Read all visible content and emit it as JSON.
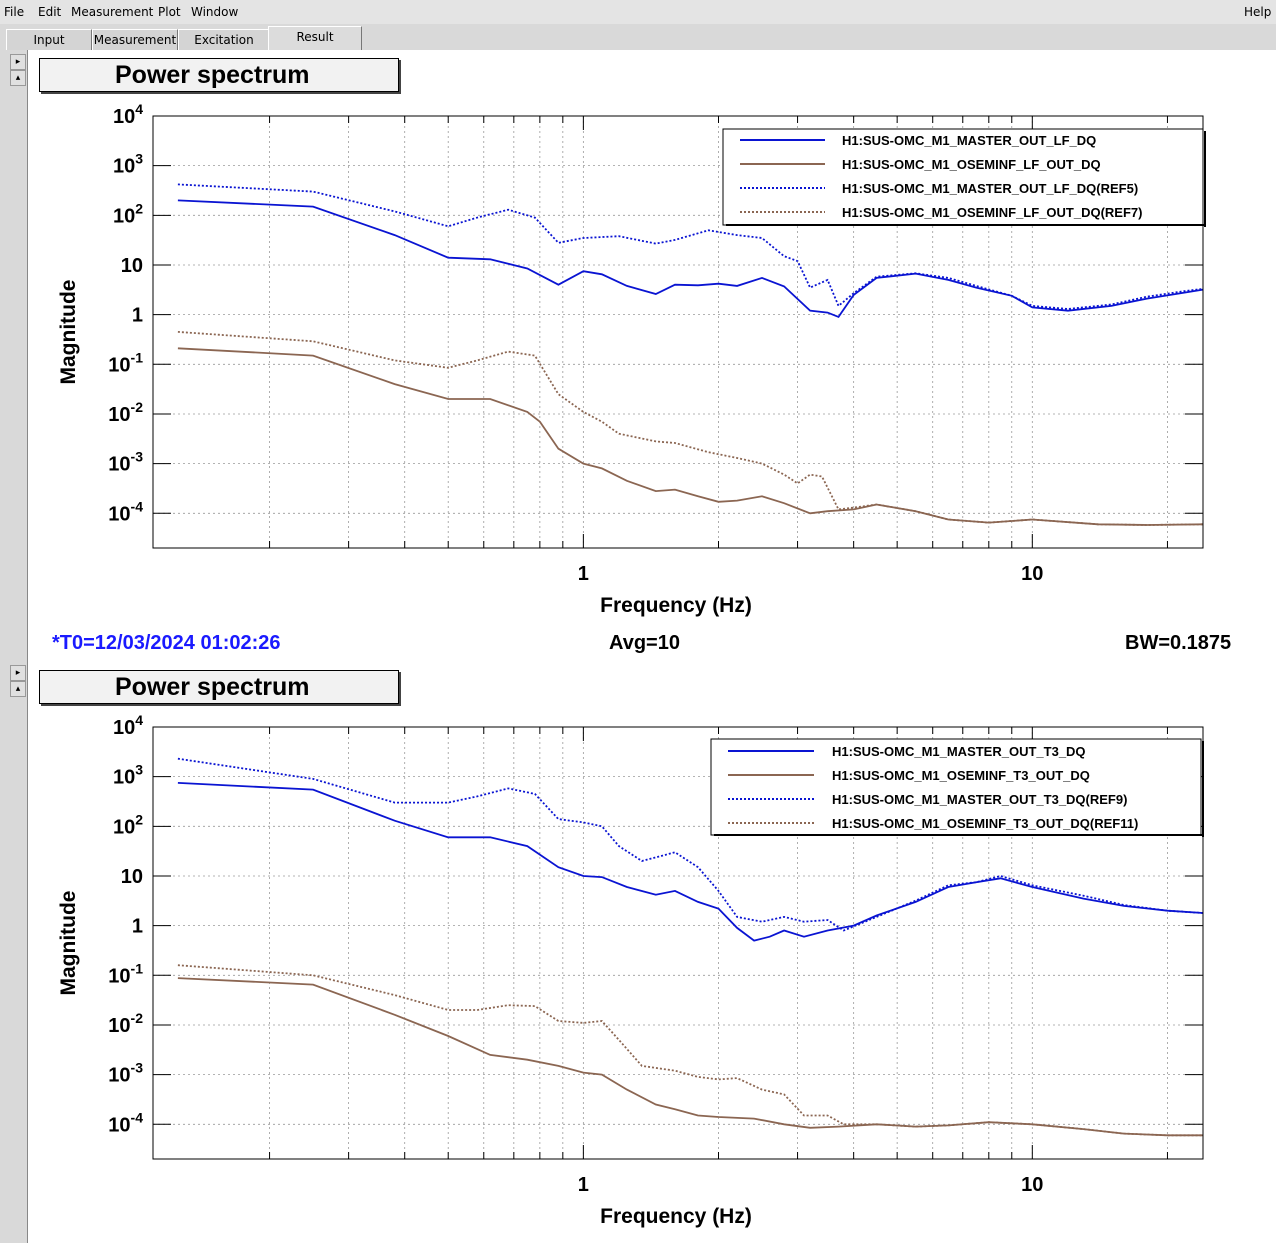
{
  "menubar": {
    "items": [
      "File",
      "Edit",
      "Measurement",
      "Plot",
      "Window"
    ],
    "help": "Help"
  },
  "tabs": [
    "Input",
    "Measurement",
    "Excitation",
    "Result"
  ],
  "active_tab": "Result",
  "panel_buttons": [
    "▸",
    "▴"
  ],
  "plots": [
    {
      "title": "Power spectrum",
      "xlabel": "Frequency (Hz)",
      "ylabel": "Magnitude",
      "legend": [
        "H1:SUS-OMC_M1_MASTER_OUT_LF_DQ",
        "H1:SUS-OMC_M1_OSEMINF_LF_OUT_DQ",
        "H1:SUS-OMC_M1_MASTER_OUT_LF_DQ(REF5)",
        "H1:SUS-OMC_M1_OSEMINF_LF_OUT_DQ(REF7)"
      ]
    },
    {
      "title": "Power spectrum",
      "xlabel": "Frequency (Hz)",
      "ylabel": "Magnitude",
      "legend": [
        "H1:SUS-OMC_M1_MASTER_OUT_T3_DQ",
        "H1:SUS-OMC_M1_OSEMINF_T3_OUT_DQ",
        "H1:SUS-OMC_M1_MASTER_OUT_T3_DQ(REF9)",
        "H1:SUS-OMC_M1_OSEMINF_T3_OUT_DQ(REF11)"
      ]
    }
  ],
  "status": {
    "t0": "*T0=12/03/2024 01:02:26",
    "avg": "Avg=10",
    "bw": "BW=0.1875"
  },
  "colors": {
    "blue": "#0a14d2",
    "brown": "#8b6652",
    "status_blue": "#1a1aff"
  },
  "chart_data": [
    {
      "type": "line",
      "title": "Power spectrum",
      "xlabel": "Frequency (Hz)",
      "ylabel": "Magnitude",
      "x_scale": "log",
      "y_scale": "log",
      "xlim": [
        0.11,
        24
      ],
      "ylim": [
        2e-05,
        10000
      ],
      "x_ticks": [
        "1",
        "10"
      ],
      "y_ticks": [
        "10^4",
        "10^3",
        "10^2",
        "10",
        "1",
        "10^-1",
        "10^-2",
        "10^-3",
        "10^-4"
      ],
      "grid": true,
      "legend_position": "top-right",
      "series": [
        {
          "name": "H1:SUS-OMC_M1_MASTER_OUT_LF_DQ",
          "color": "blue",
          "dash": "solid",
          "points": [
            [
              0.125,
              200
            ],
            [
              0.25,
              150
            ],
            [
              0.38,
              40
            ],
            [
              0.5,
              14
            ],
            [
              0.62,
              13
            ],
            [
              0.75,
              8.5
            ],
            [
              0.88,
              4
            ],
            [
              1.0,
              7.5
            ],
            [
              1.1,
              6.5
            ],
            [
              1.25,
              3.8
            ],
            [
              1.45,
              2.6
            ],
            [
              1.6,
              4
            ],
            [
              1.8,
              3.9
            ],
            [
              2.0,
              4.2
            ],
            [
              2.2,
              3.8
            ],
            [
              2.5,
              5.5
            ],
            [
              2.8,
              3.7
            ],
            [
              3.2,
              1.2
            ],
            [
              3.5,
              1.1
            ],
            [
              3.7,
              0.9
            ],
            [
              4.0,
              2.5
            ],
            [
              4.5,
              5.5
            ],
            [
              5.5,
              6.7
            ],
            [
              6.5,
              5
            ],
            [
              7.5,
              3.5
            ],
            [
              9,
              2.4
            ],
            [
              10,
              1.4
            ],
            [
              12,
              1.2
            ],
            [
              15,
              1.5
            ],
            [
              18,
              2.1
            ],
            [
              22,
              2.8
            ],
            [
              24,
              3.2
            ]
          ]
        },
        {
          "name": "H1:SUS-OMC_M1_OSEMINF_LF_OUT_DQ",
          "color": "brown",
          "dash": "solid",
          "points": [
            [
              0.125,
              0.21
            ],
            [
              0.25,
              0.15
            ],
            [
              0.38,
              0.04
            ],
            [
              0.5,
              0.02
            ],
            [
              0.62,
              0.02
            ],
            [
              0.75,
              0.011
            ],
            [
              0.8,
              0.007
            ],
            [
              0.88,
              0.002
            ],
            [
              1.0,
              0.001
            ],
            [
              1.1,
              0.0008
            ],
            [
              1.25,
              0.00045
            ],
            [
              1.45,
              0.00028
            ],
            [
              1.6,
              0.0003
            ],
            [
              1.8,
              0.00022
            ],
            [
              2.0,
              0.00017
            ],
            [
              2.2,
              0.00018
            ],
            [
              2.5,
              0.00022
            ],
            [
              2.8,
              0.00016
            ],
            [
              3.2,
              0.0001
            ],
            [
              3.5,
              0.00011
            ],
            [
              4.0,
              0.00012
            ],
            [
              4.5,
              0.00015
            ],
            [
              5.5,
              0.00011
            ],
            [
              6.5,
              7.5e-05
            ],
            [
              8,
              6.5e-05
            ],
            [
              10,
              7.5e-05
            ],
            [
              14,
              6e-05
            ],
            [
              18,
              5.8e-05
            ],
            [
              24,
              6e-05
            ]
          ]
        },
        {
          "name": "H1:SUS-OMC_M1_MASTER_OUT_LF_DQ(REF5)",
          "color": "blue",
          "dash": "dotted",
          "points": [
            [
              0.125,
              420
            ],
            [
              0.25,
              300
            ],
            [
              0.38,
              120
            ],
            [
              0.5,
              60
            ],
            [
              0.58,
              90
            ],
            [
              0.68,
              130
            ],
            [
              0.78,
              90
            ],
            [
              0.88,
              28
            ],
            [
              1.0,
              35
            ],
            [
              1.2,
              38
            ],
            [
              1.45,
              27
            ],
            [
              1.6,
              32
            ],
            [
              1.9,
              50
            ],
            [
              2.2,
              40
            ],
            [
              2.5,
              35
            ],
            [
              2.8,
              15
            ],
            [
              3.0,
              12
            ],
            [
              3.2,
              3.5
            ],
            [
              3.5,
              5
            ],
            [
              3.7,
              1.5
            ],
            [
              4.0,
              2.7
            ],
            [
              4.5,
              5.8
            ],
            [
              5.5,
              6.8
            ],
            [
              6.5,
              5.5
            ],
            [
              7.5,
              3.8
            ],
            [
              9,
              2.4
            ],
            [
              10,
              1.5
            ],
            [
              12,
              1.3
            ],
            [
              15,
              1.6
            ],
            [
              18,
              2.3
            ],
            [
              22,
              3.0
            ],
            [
              24,
              3.3
            ]
          ]
        },
        {
          "name": "H1:SUS-OMC_M1_OSEMINF_LF_OUT_DQ(REF7)",
          "color": "brown",
          "dash": "dotted",
          "points": [
            [
              0.125,
              0.45
            ],
            [
              0.25,
              0.29
            ],
            [
              0.38,
              0.12
            ],
            [
              0.5,
              0.085
            ],
            [
              0.58,
              0.12
            ],
            [
              0.68,
              0.18
            ],
            [
              0.78,
              0.15
            ],
            [
              0.88,
              0.025
            ],
            [
              1.0,
              0.011
            ],
            [
              1.1,
              0.007
            ],
            [
              1.2,
              0.004
            ],
            [
              1.45,
              0.0028
            ],
            [
              1.6,
              0.0026
            ],
            [
              1.9,
              0.0017
            ],
            [
              2.2,
              0.0013
            ],
            [
              2.5,
              0.001
            ],
            [
              2.8,
              0.0006
            ],
            [
              3.0,
              0.0004
            ],
            [
              3.2,
              0.0006
            ],
            [
              3.4,
              0.00055
            ],
            [
              3.7,
              0.00012
            ],
            [
              4.0,
              0.00013
            ],
            [
              4.5,
              0.00015
            ],
            [
              5.5,
              0.00011
            ],
            [
              6.5,
              7.5e-05
            ],
            [
              8,
              6.5e-05
            ],
            [
              10,
              7.5e-05
            ],
            [
              14,
              6e-05
            ],
            [
              18,
              5.8e-05
            ],
            [
              24,
              6e-05
            ]
          ]
        }
      ]
    },
    {
      "type": "line",
      "title": "Power spectrum",
      "xlabel": "Frequency (Hz)",
      "ylabel": "Magnitude",
      "x_scale": "log",
      "y_scale": "log",
      "xlim": [
        0.11,
        24
      ],
      "ylim": [
        2e-05,
        10000
      ],
      "x_ticks": [
        "1",
        "10"
      ],
      "y_ticks": [
        "10^4",
        "10^3",
        "10^2",
        "10",
        "1",
        "10^-1",
        "10^-2",
        "10^-3",
        "10^-4"
      ],
      "grid": true,
      "legend_position": "top-right",
      "series": [
        {
          "name": "H1:SUS-OMC_M1_MASTER_OUT_T3_DQ",
          "color": "blue",
          "dash": "solid",
          "points": [
            [
              0.125,
              750
            ],
            [
              0.25,
              550
            ],
            [
              0.38,
              130
            ],
            [
              0.5,
              60
            ],
            [
              0.62,
              60
            ],
            [
              0.75,
              40
            ],
            [
              0.88,
              15
            ],
            [
              1.0,
              10
            ],
            [
              1.1,
              9.5
            ],
            [
              1.25,
              6
            ],
            [
              1.45,
              4.2
            ],
            [
              1.6,
              5
            ],
            [
              1.8,
              3
            ],
            [
              2.0,
              2.2
            ],
            [
              2.2,
              0.9
            ],
            [
              2.4,
              0.5
            ],
            [
              2.6,
              0.6
            ],
            [
              2.8,
              0.8
            ],
            [
              3.1,
              0.6
            ],
            [
              3.5,
              0.8
            ],
            [
              4.0,
              1
            ],
            [
              4.5,
              1.6
            ],
            [
              5.5,
              3
            ],
            [
              6.5,
              6
            ],
            [
              7.5,
              7.5
            ],
            [
              8.5,
              9
            ],
            [
              10,
              6
            ],
            [
              13,
              3.5
            ],
            [
              16,
              2.5
            ],
            [
              20,
              2
            ],
            [
              24,
              1.8
            ]
          ]
        },
        {
          "name": "H1:SUS-OMC_M1_OSEMINF_T3_OUT_DQ",
          "color": "brown",
          "dash": "solid",
          "points": [
            [
              0.125,
              0.088
            ],
            [
              0.25,
              0.065
            ],
            [
              0.38,
              0.016
            ],
            [
              0.5,
              0.006
            ],
            [
              0.62,
              0.0025
            ],
            [
              0.75,
              0.002
            ],
            [
              0.88,
              0.0015
            ],
            [
              1.0,
              0.0011
            ],
            [
              1.1,
              0.001
            ],
            [
              1.25,
              0.0005
            ],
            [
              1.45,
              0.00025
            ],
            [
              1.6,
              0.0002
            ],
            [
              1.8,
              0.00015
            ],
            [
              2.0,
              0.00014
            ],
            [
              2.4,
              0.00013
            ],
            [
              2.8,
              0.0001
            ],
            [
              3.2,
              8.5e-05
            ],
            [
              3.7,
              9e-05
            ],
            [
              4.5,
              0.0001
            ],
            [
              5.5,
              9e-05
            ],
            [
              6.5,
              9.5e-05
            ],
            [
              8,
              0.00011
            ],
            [
              10,
              0.0001
            ],
            [
              13,
              8e-05
            ],
            [
              16,
              6.5e-05
            ],
            [
              20,
              6e-05
            ],
            [
              24,
              6e-05
            ]
          ]
        },
        {
          "name": "H1:SUS-OMC_M1_MASTER_OUT_T3_DQ(REF9)",
          "color": "blue",
          "dash": "dotted",
          "points": [
            [
              0.125,
              2300
            ],
            [
              0.25,
              900
            ],
            [
              0.38,
              300
            ],
            [
              0.5,
              300
            ],
            [
              0.58,
              400
            ],
            [
              0.68,
              580
            ],
            [
              0.78,
              450
            ],
            [
              0.88,
              140
            ],
            [
              1.0,
              120
            ],
            [
              1.1,
              100
            ],
            [
              1.2,
              40
            ],
            [
              1.35,
              20
            ],
            [
              1.6,
              30
            ],
            [
              1.8,
              15
            ],
            [
              2.0,
              5
            ],
            [
              2.2,
              1.5
            ],
            [
              2.5,
              1.2
            ],
            [
              2.8,
              1.5
            ],
            [
              3.1,
              1.2
            ],
            [
              3.5,
              1.3
            ],
            [
              3.8,
              0.8
            ],
            [
              4.5,
              1.5
            ],
            [
              5.5,
              3.2
            ],
            [
              6.5,
              6.5
            ],
            [
              7.5,
              7.5
            ],
            [
              8.5,
              10
            ],
            [
              10,
              6.5
            ],
            [
              13,
              4
            ],
            [
              16,
              2.6
            ],
            [
              20,
              2
            ],
            [
              24,
              1.8
            ]
          ]
        },
        {
          "name": "H1:SUS-OMC_M1_OSEMINF_T3_OUT_DQ(REF11)",
          "color": "brown",
          "dash": "dotted",
          "points": [
            [
              0.125,
              0.16
            ],
            [
              0.25,
              0.1
            ],
            [
              0.38,
              0.04
            ],
            [
              0.5,
              0.02
            ],
            [
              0.58,
              0.02
            ],
            [
              0.68,
              0.025
            ],
            [
              0.78,
              0.024
            ],
            [
              0.88,
              0.012
            ],
            [
              1.0,
              0.011
            ],
            [
              1.1,
              0.012
            ],
            [
              1.2,
              0.005
            ],
            [
              1.35,
              0.0015
            ],
            [
              1.6,
              0.0012
            ],
            [
              1.8,
              0.0009
            ],
            [
              2.0,
              0.0008
            ],
            [
              2.2,
              0.00085
            ],
            [
              2.5,
              0.0005
            ],
            [
              2.8,
              0.0004
            ],
            [
              3.1,
              0.00015
            ],
            [
              3.5,
              0.00015
            ],
            [
              3.8,
              0.0001
            ],
            [
              4.5,
              0.0001
            ],
            [
              5.5,
              9e-05
            ],
            [
              6.5,
              9.5e-05
            ],
            [
              8,
              0.00011
            ],
            [
              10,
              0.0001
            ],
            [
              13,
              8e-05
            ],
            [
              16,
              6.5e-05
            ],
            [
              20,
              6e-05
            ],
            [
              24,
              6e-05
            ]
          ]
        }
      ]
    }
  ]
}
